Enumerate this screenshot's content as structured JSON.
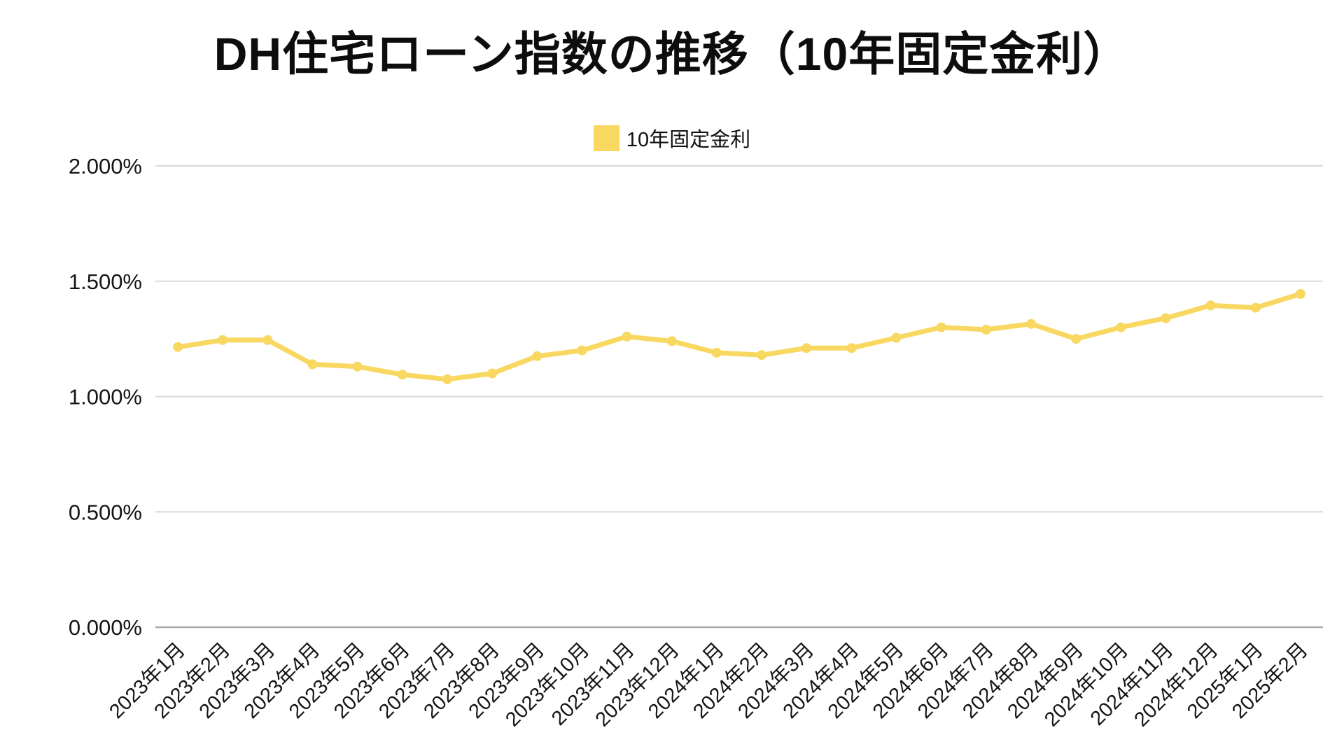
{
  "title": "DH住宅ローン指数の推移（10年固定金利）",
  "legend": {
    "label": "10年固定金利",
    "swatch_color": "#F8D861"
  },
  "chart_data": {
    "type": "line",
    "title": "DH住宅ローン指数の推移（10年固定金利）",
    "categories": [
      "2023年1月",
      "2023年2月",
      "2023年3月",
      "2023年4月",
      "2023年5月",
      "2023年6月",
      "2023年7月",
      "2023年8月",
      "2023年9月",
      "2023年10月",
      "2023年11月",
      "2023年12月",
      "2024年1月",
      "2024年2月",
      "2024年3月",
      "2024年4月",
      "2024年5月",
      "2024年6月",
      "2024年7月",
      "2024年8月",
      "2024年9月",
      "2024年10月",
      "2024年11月",
      "2024年12月",
      "2025年1月",
      "2025年2月"
    ],
    "series": [
      {
        "name": "10年固定金利",
        "values": [
          1.215,
          1.245,
          1.245,
          1.14,
          1.13,
          1.095,
          1.075,
          1.1,
          1.175,
          1.2,
          1.26,
          1.24,
          1.19,
          1.18,
          1.21,
          1.21,
          1.255,
          1.3,
          1.29,
          1.315,
          1.25,
          1.3,
          1.34,
          1.395,
          1.385,
          1.445
        ]
      }
    ],
    "xlabel": "",
    "ylabel": "",
    "ylim": [
      0,
      2
    ],
    "y_tick_step": 0.5,
    "y_tick_labels": [
      "2.000%",
      "1.500%",
      "1.000%",
      "0.500%",
      "0.000%"
    ],
    "y_tick_format": "3dp_percent",
    "grid": true,
    "x_tick_rotation_deg": 45,
    "legend_position": "top-center",
    "line_color": "#F8D861",
    "marker_color": "#F8D861",
    "grid_color": "#D9D9D9",
    "axis_line_color": "#A9A9A9",
    "tick_text_color": "#151515",
    "background_color": "#FFFFFF"
  }
}
